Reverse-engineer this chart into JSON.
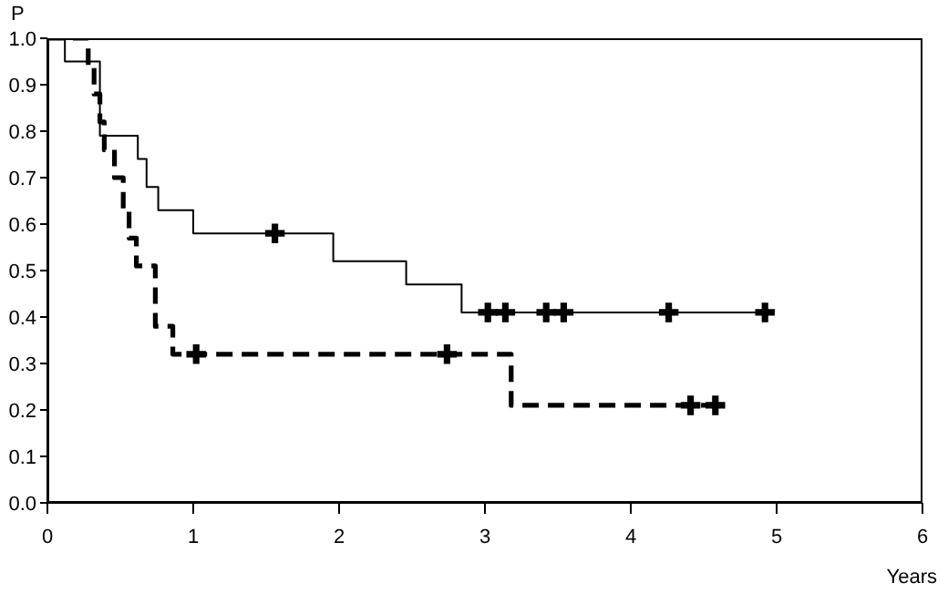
{
  "chart_data": {
    "type": "step",
    "xlabel": "Years",
    "ylabel": "P",
    "xlim": [
      0,
      6
    ],
    "xticks": [
      0,
      1,
      2,
      3,
      4,
      5,
      6
    ],
    "ylim": [
      0,
      1
    ],
    "yticks": [
      {
        "value": 0,
        "label": "0.0"
      },
      0.1,
      0.2,
      0.3,
      0.4,
      0.5,
      0.6,
      0.7,
      0.8,
      0.9,
      {
        "value": 1,
        "label": "1.0"
      }
    ],
    "grid": false,
    "legend": false,
    "series": [
      {
        "color": "#000000",
        "line_style": "solid",
        "marker": "none",
        "x": [
          0,
          0.12,
          0.36,
          0.62,
          0.68,
          0.76,
          1.0,
          1.96,
          2.46,
          2.84,
          4.92
        ],
        "values": [
          1,
          0.95,
          0.79,
          0.74,
          0.68,
          0.63,
          0.58,
          0.52,
          0.47,
          0.41,
          0.41
        ]
      },
      {
        "color": "#000000",
        "line_style": "dashed",
        "marker": "none",
        "x": [
          0,
          0.28,
          0.32,
          0.36,
          0.39,
          0.46,
          0.52,
          0.56,
          0.61,
          0.74,
          0.86,
          3.18,
          4.6
        ],
        "values": [
          1,
          0.94,
          0.88,
          0.82,
          0.76,
          0.7,
          0.63,
          0.57,
          0.51,
          0.38,
          0.32,
          0.21,
          0.21
        ]
      },
      {
        "type": "scatter",
        "color": "#000000",
        "marker": "cross",
        "x": [
          1.56,
          3.02,
          3.14,
          3.42,
          3.54,
          4.26,
          4.92
        ],
        "values": [
          0.58,
          0.41,
          0.41,
          0.41,
          0.41,
          0.41,
          0.41
        ]
      },
      {
        "type": "scatter",
        "color": "#000000",
        "marker": "cross",
        "x": [
          1.02,
          2.74,
          4.41,
          4.58
        ],
        "values": [
          0.32,
          0.32,
          0.21,
          0.21
        ]
      }
    ]
  }
}
